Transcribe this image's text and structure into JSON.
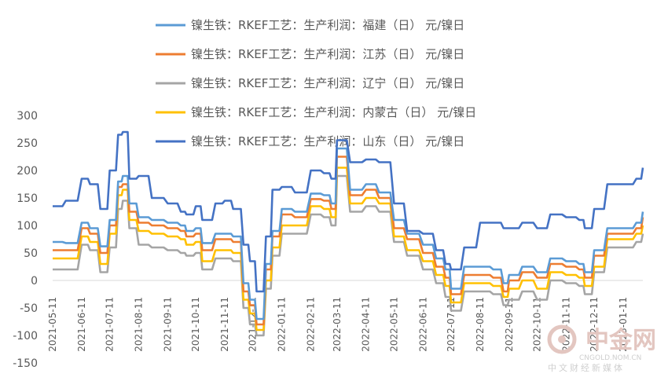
{
  "chart_data": {
    "type": "line",
    "title": "",
    "xlabel": "",
    "ylabel": "",
    "ylim": [
      -150,
      300
    ],
    "yticks": [
      -150,
      -100,
      -50,
      0,
      50,
      100,
      150,
      200,
      250,
      300
    ],
    "grid": false,
    "legend_position": "top",
    "x_ticks": [
      "2021-05-11",
      "2021-06-11",
      "2021-07-11",
      "2021-08-11",
      "2021-09-11",
      "2021-10-11",
      "2021-11-11",
      "2021-12-11",
      "2022-01-11",
      "2022-02-11",
      "2022-03-11",
      "2022-04-11",
      "2022-05-11",
      "2022-06-11",
      "2022-07-11",
      "2022-08-11",
      "2022-09-11",
      "2022-10-11",
      "2022-11-11",
      "2022-12-11",
      "2023-01-11"
    ],
    "x": [
      "2021-05-11",
      "2021-05-25",
      "2021-06-11",
      "2021-06-20",
      "2021-07-01",
      "2021-07-11",
      "2021-07-20",
      "2021-07-25",
      "2021-08-01",
      "2021-08-11",
      "2021-08-25",
      "2021-09-11",
      "2021-09-25",
      "2021-10-01",
      "2021-10-11",
      "2021-10-18",
      "2021-11-01",
      "2021-11-11",
      "2021-11-20",
      "2021-12-01",
      "2021-12-08",
      "2021-12-15",
      "2021-12-25",
      "2022-01-01",
      "2022-01-11",
      "2022-01-25",
      "2022-02-11",
      "2022-02-25",
      "2022-03-05",
      "2022-03-11",
      "2022-03-25",
      "2022-04-11",
      "2022-04-25",
      "2022-05-11",
      "2022-05-25",
      "2022-06-11",
      "2022-06-25",
      "2022-07-05",
      "2022-07-11",
      "2022-07-25",
      "2022-08-11",
      "2022-08-25",
      "2022-09-05",
      "2022-09-11",
      "2022-09-25",
      "2022-10-11",
      "2022-10-25",
      "2022-11-11",
      "2022-11-25",
      "2022-12-01",
      "2022-12-11",
      "2022-12-25",
      "2023-01-11",
      "2023-01-25",
      "2023-02-01"
    ],
    "series": [
      {
        "name": "镍生铁：RKEF工艺：生产利润：福建（日） 元/镍日",
        "color": "#5B9BD5",
        "values": [
          70,
          68,
          105,
          95,
          62,
          110,
          180,
          190,
          140,
          115,
          110,
          105,
          100,
          90,
          95,
          68,
          85,
          85,
          80,
          -5,
          -35,
          -70,
          30,
          90,
          130,
          125,
          158,
          155,
          140,
          240,
          165,
          175,
          160,
          110,
          85,
          65,
          40,
          20,
          -15,
          25,
          25,
          20,
          -5,
          10,
          25,
          15,
          40,
          35,
          30,
          15,
          55,
          95,
          95,
          105,
          125
        ]
      },
      {
        "name": "镍生铁：RKEF工艺：生产利润：江苏（日） 元/镍日",
        "color": "#ED7D31",
        "values": [
          55,
          55,
          95,
          85,
          50,
          100,
          170,
          175,
          125,
          105,
          100,
          95,
          90,
          80,
          85,
          55,
          75,
          75,
          70,
          -20,
          -45,
          -80,
          20,
          80,
          120,
          115,
          148,
          145,
          130,
          225,
          155,
          165,
          150,
          95,
          75,
          50,
          25,
          5,
          -25,
          10,
          10,
          5,
          -20,
          0,
          15,
          5,
          30,
          25,
          20,
          5,
          45,
          85,
          85,
          95,
          115
        ]
      },
      {
        "name": "镍生铁：RKEF工艺：生产利润：辽宁（日） 元/镍日",
        "color": "#A5A5A5",
        "values": [
          20,
          20,
          65,
          55,
          15,
          60,
          130,
          145,
          95,
          65,
          60,
          55,
          50,
          45,
          50,
          20,
          40,
          40,
          35,
          -50,
          -80,
          -100,
          -15,
          45,
          85,
          85,
          120,
          115,
          100,
          190,
          125,
          135,
          125,
          70,
          45,
          20,
          -5,
          -30,
          -55,
          -20,
          -20,
          -25,
          -45,
          -35,
          -20,
          -35,
          0,
          -5,
          -10,
          -25,
          15,
          60,
          60,
          70,
          85
        ]
      },
      {
        "name": "镍生铁：RKEF工艺：生产利润：内蒙古（日） 元/镍日",
        "color": "#FFC000",
        "values": [
          40,
          40,
          80,
          70,
          30,
          85,
          155,
          165,
          110,
          90,
          85,
          80,
          75,
          65,
          70,
          35,
          55,
          55,
          50,
          -35,
          -60,
          -90,
          0,
          60,
          100,
          100,
          135,
          130,
          115,
          205,
          140,
          150,
          140,
          80,
          55,
          35,
          10,
          -10,
          -40,
          -5,
          -5,
          -10,
          -30,
          -15,
          0,
          -15,
          15,
          10,
          5,
          -10,
          25,
          75,
          75,
          85,
          100
        ]
      },
      {
        "name": "镍生铁：RKEF工艺：生产利润：山东（日） 元/镍日",
        "color": "#4472C4",
        "values": [
          135,
          145,
          185,
          175,
          130,
          200,
          265,
          270,
          185,
          190,
          150,
          140,
          125,
          120,
          135,
          110,
          140,
          145,
          130,
          65,
          35,
          -20,
          80,
          165,
          170,
          160,
          200,
          195,
          185,
          255,
          215,
          220,
          215,
          140,
          90,
          85,
          55,
          30,
          20,
          60,
          105,
          105,
          95,
          95,
          105,
          95,
          120,
          115,
          110,
          95,
          130,
          175,
          175,
          185,
          205
        ]
      }
    ]
  },
  "watermark": {
    "name": "中金网",
    "url": "CNGOLD.NOM.CN",
    "subtitle": "中文财经新媒体"
  }
}
